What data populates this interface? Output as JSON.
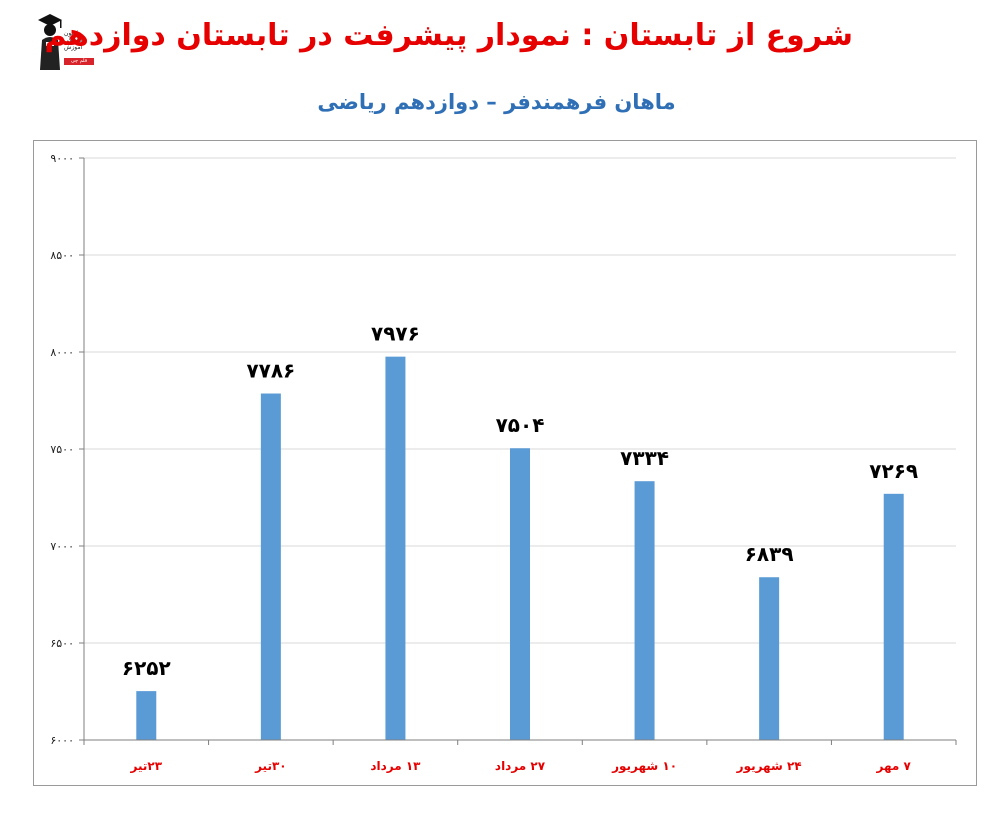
{
  "header": {
    "title": "شروع از تابستان : نمودار پیشرفت در تابستان دوازدهم",
    "subtitle": "ماهان فرهمندفر – دوازدهم ریاضی"
  },
  "logo": {
    "lines": [
      "کانون",
      "فرهنگی",
      "آموزش"
    ],
    "badge": "قلم چی"
  },
  "colors": {
    "title": "#e60000",
    "subtitle": "#2f6fb5",
    "bar": "#5b9bd5",
    "xtick": "#e60000"
  },
  "chart_data": {
    "type": "bar",
    "categories": [
      "۲۳تیر",
      "۳۰تیر",
      "۱۳ مرداد",
      "۲۷ مرداد",
      "۱۰ شهریور",
      "۲۴ شهریور",
      "۷ مهر"
    ],
    "values": [
      6252,
      7786,
      7976,
      7504,
      7334,
      6839,
      7269
    ],
    "value_labels": [
      "۶۲۵۲",
      "۷۷۸۶",
      "۷۹۷۶",
      "۷۵۰۴",
      "۷۳۳۴",
      "۶۸۳۹",
      "۷۲۶۹"
    ],
    "ylim": [
      6000,
      9000
    ],
    "yticks": [
      6000,
      6500,
      7000,
      7500,
      8000,
      8500,
      9000
    ],
    "ytick_labels": [
      "۶۰۰۰",
      "۶۵۰۰",
      "۷۰۰۰",
      "۷۵۰۰",
      "۸۰۰۰",
      "۸۵۰۰",
      "۹۰۰۰"
    ],
    "grid": true,
    "legend": "none"
  }
}
